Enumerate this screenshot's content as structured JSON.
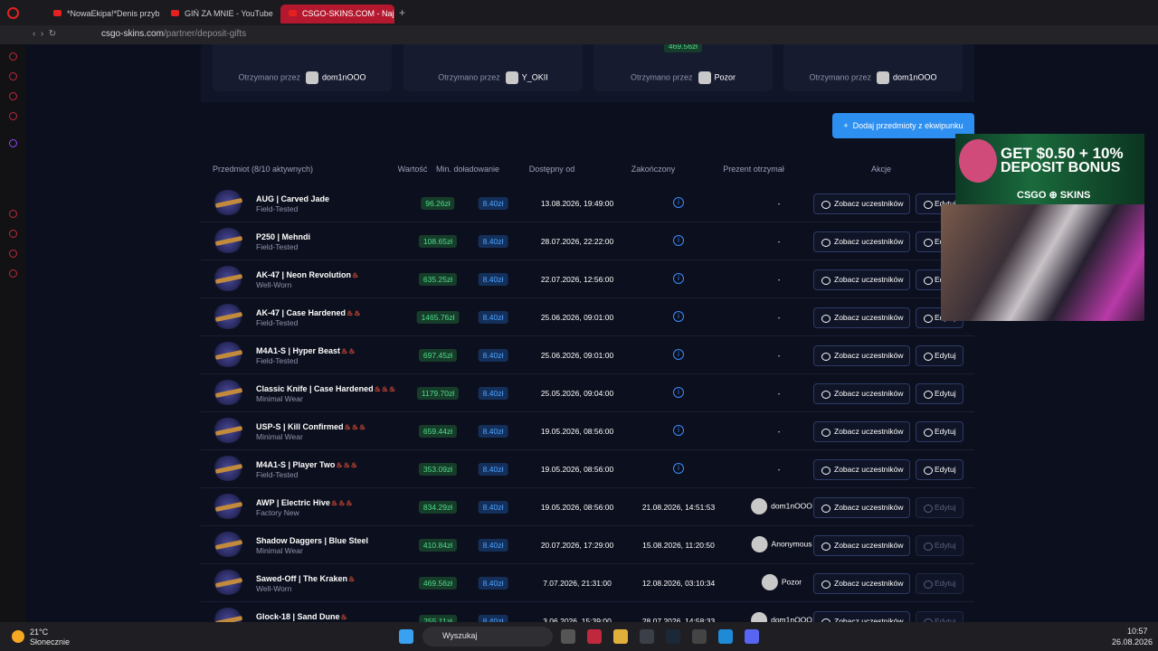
{
  "browser": {
    "tabs": [
      "*NowaEkipa!*Denis przyby",
      "GIŃ ZA MNIE - YouTube",
      "CSGO-SKINS.COM - Najlep"
    ],
    "url_host": "csgo-skins.com",
    "url_path": "/partner/deposit-gifts"
  },
  "top_cards": {
    "prefix": "Otrzymano przez",
    "users": [
      "dom1nOOO",
      "Y_OKII",
      "Pozor",
      "dom1nOOO"
    ],
    "badge": "469.56zł"
  },
  "add_button": "Dodaj przedmioty z ekwipunku",
  "table": {
    "headers": [
      "Przedmiot (8/10 aktywnych)",
      "Wartość",
      "Min. doładowanie",
      "Dostępny od",
      "Zakończony",
      "Prezent otrzymał",
      "Akcje"
    ],
    "view_button": "Zobacz uczestników",
    "edit_button": "Edytuj",
    "rows": [
      {
        "name": "AUG | Carved Jade",
        "condition": "Field-Tested",
        "flames": 0,
        "value": "96.26zł",
        "min": "8.40zł",
        "from": "13.08.2026, 19:49:00",
        "winner": "-"
      },
      {
        "name": "P250 | Mehndi",
        "condition": "Field-Tested",
        "flames": 0,
        "value": "108.65zł",
        "min": "8.40zł",
        "from": "28.07.2026, 22:22:00",
        "winner": "-"
      },
      {
        "name": "AK-47 | Neon Revolution",
        "condition": "Well-Worn",
        "flames": 1,
        "value": "635.25zł",
        "min": "8.40zł",
        "from": "22.07.2026, 12:56:00",
        "winner": "-"
      },
      {
        "name": "AK-47 | Case Hardened",
        "condition": "Field-Tested",
        "flames": 2,
        "value": "1465.76zł",
        "min": "8.40zł",
        "from": "25.06.2026, 09:01:00",
        "winner": "-"
      },
      {
        "name": "M4A1-S | Hyper Beast",
        "condition": "Field-Tested",
        "flames": 2,
        "value": "697.45zł",
        "min": "8.40zł",
        "from": "25.06.2026, 09:01:00",
        "winner": "-"
      },
      {
        "name": "Classic Knife | Case Hardened",
        "condition": "Minimal Wear",
        "flames": 3,
        "value": "1179.70zł",
        "min": "8.40zł",
        "from": "25.05.2026, 09:04:00",
        "winner": "-"
      },
      {
        "name": "USP-S | Kill Confirmed",
        "condition": "Minimal Wear",
        "flames": 3,
        "value": "659.44zł",
        "min": "8.40zł",
        "from": "19.05.2026, 08:56:00",
        "winner": "-"
      },
      {
        "name": "M4A1-S | Player Two",
        "condition": "Field-Tested",
        "flames": 3,
        "value": "353.09zł",
        "min": "8.40zł",
        "from": "19.05.2026, 08:56:00",
        "winner": "-"
      },
      {
        "name": "AWP | Electric Hive",
        "condition": "Factory New",
        "flames": 3,
        "value": "834.29zł",
        "min": "8.40zł",
        "from": "19.05.2026, 08:56:00",
        "ended": "21.08.2026, 14:51:53",
        "winner": "dom1nOOO"
      },
      {
        "name": "Shadow Daggers | Blue Steel",
        "condition": "Minimal Wear",
        "flames": 0,
        "value": "410.84zł",
        "min": "8.40zł",
        "from": "20.07.2026, 17:29:00",
        "ended": "15.08.2026, 11:20:50",
        "winner": "Anonymous"
      },
      {
        "name": "Sawed-Off | The Kraken",
        "condition": "Well-Worn",
        "flames": 1,
        "value": "469.56zł",
        "min": "8.40zł",
        "from": "7.07.2026, 21:31:00",
        "ended": "12.08.2026, 03:10:34",
        "winner": "Pozor"
      },
      {
        "name": "Glock-18 | Sand Dune",
        "flames": 1,
        "value": "255.11zł",
        "min": "8.40zł",
        "from": "3.06.2026, 15:39:00",
        "ended": "28.07.2026, 14:58:33",
        "winner": "dom1nOOO"
      }
    ]
  },
  "overlay": {
    "line1": "GET $0.50 + 10%",
    "line2": "DEPOSIT BONUS",
    "brand_left": "CSGO",
    "brand_right": "SKINS"
  },
  "taskbar": {
    "temp": "21°C",
    "weather": "Słonecznie",
    "search": "Wyszukaj",
    "time": "10:57",
    "date": "26.08.2026"
  }
}
